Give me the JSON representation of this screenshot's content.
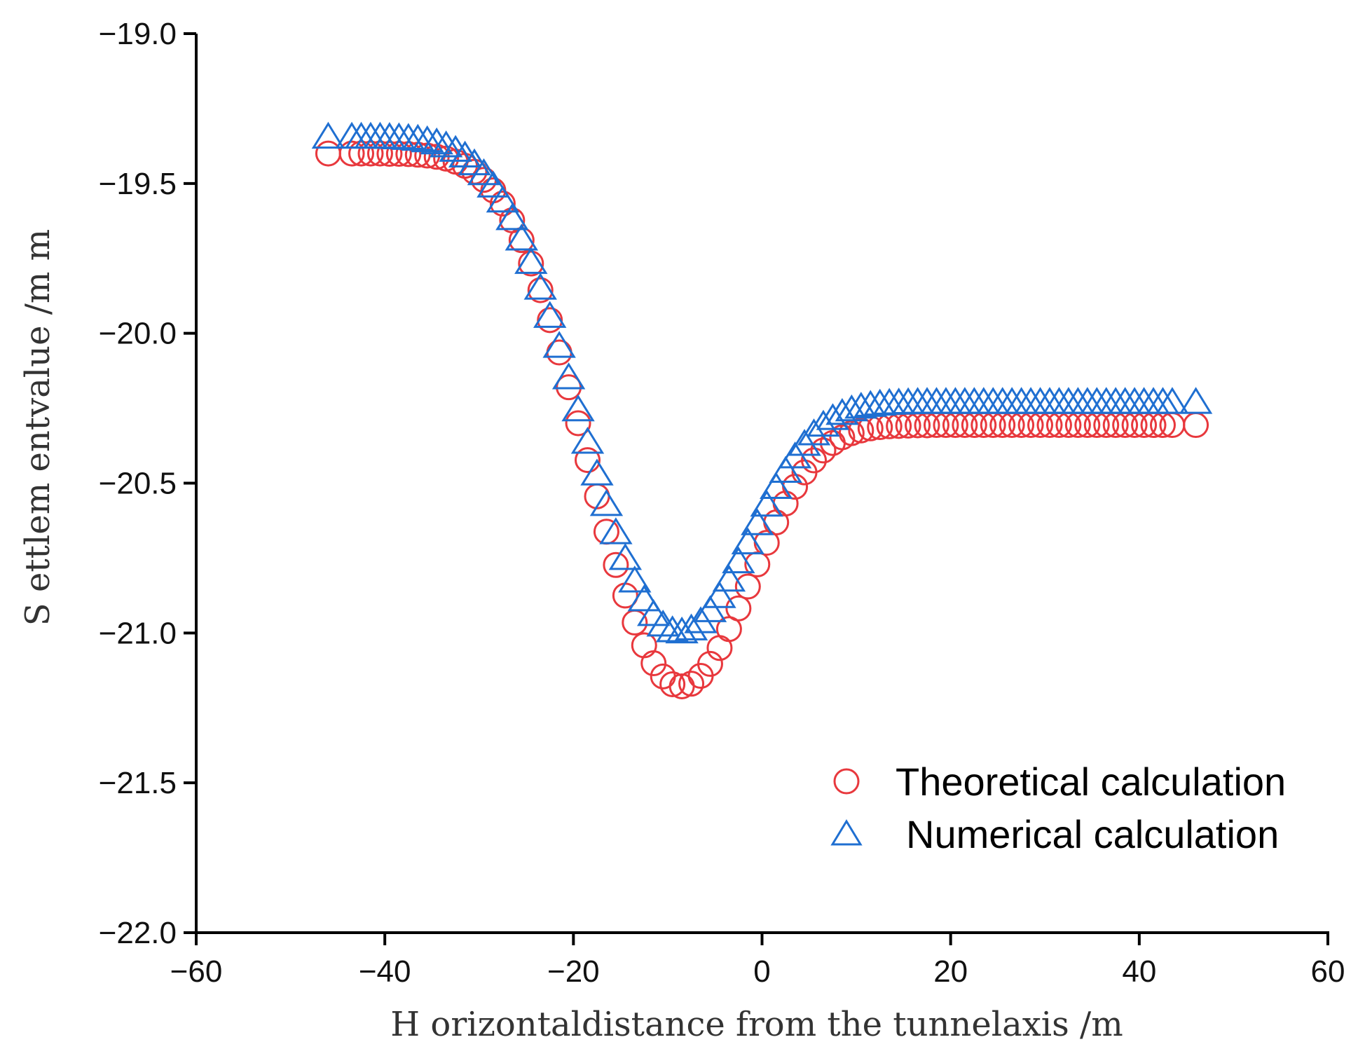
{
  "chart_data": {
    "type": "scatter",
    "xlabel": "H orizontaldistance from  the tunnelaxis /m",
    "ylabel": "S ettlem entvalue /m m",
    "xlim": [
      -60,
      60
    ],
    "ylim": [
      -22.0,
      -19.0
    ],
    "xticks": [
      -60,
      -40,
      -20,
      0,
      20,
      40,
      60
    ],
    "xtick_labels": [
      "−60",
      "−40",
      "−20",
      "0",
      "20",
      "40",
      "60"
    ],
    "yticks": [
      -19.0,
      -19.5,
      -20.0,
      -20.5,
      -21.0,
      -21.5,
      -22.0
    ],
    "ytick_labels": [
      "−19.0",
      "−19.5",
      "−20.0",
      "−20.5",
      "−21.0",
      "−21.5",
      "−22.0"
    ],
    "legend_position": "lower-right",
    "series": [
      {
        "name": "Theoretical calculation",
        "marker": "circle",
        "color": "#e8383d",
        "x": [
          -46,
          -43.5,
          -42.5,
          -41.5,
          -40.5,
          -39.5,
          -38.5,
          -37.5,
          -36.5,
          -35.5,
          -34.5,
          -33.5,
          -32.5,
          -31.5,
          -30.5,
          -29.5,
          -28.5,
          -27.5,
          -26.5,
          -25.5,
          -24.5,
          -23.5,
          -22.5,
          -21.5,
          -20.5,
          -19.5,
          -18.5,
          -17.5,
          -16.5,
          -15.5,
          -14.5,
          -13.5,
          -12.5,
          -11.5,
          -10.5,
          -9.5,
          -8.5,
          -7.5,
          -6.5,
          -5.5,
          -4.5,
          -3.5,
          -2.5,
          -1.5,
          -0.5,
          0.5,
          1.5,
          2.5,
          3.5,
          4.5,
          5.5,
          6.5,
          7.5,
          8.5,
          9.5,
          10.5,
          11.5,
          12.5,
          13.5,
          14.5,
          15.5,
          16.5,
          17.5,
          18.5,
          19.5,
          20.5,
          21.5,
          22.5,
          23.5,
          24.5,
          25.5,
          26.5,
          27.5,
          28.5,
          29.5,
          30.5,
          31.5,
          32.5,
          33.5,
          34.5,
          35.5,
          36.5,
          37.5,
          38.5,
          39.5,
          40.5,
          41.5,
          42.5,
          43.5,
          46
        ],
        "y": [
          -19.4,
          -19.4,
          -19.4,
          -19.4,
          -19.4,
          -19.401,
          -19.401,
          -19.402,
          -19.404,
          -19.407,
          -19.411,
          -19.417,
          -19.427,
          -19.441,
          -19.461,
          -19.488,
          -19.523,
          -19.567,
          -19.623,
          -19.689,
          -19.767,
          -19.856,
          -19.956,
          -20.064,
          -20.18,
          -20.3,
          -20.423,
          -20.544,
          -20.662,
          -20.773,
          -20.875,
          -20.965,
          -21.041,
          -21.101,
          -21.145,
          -21.171,
          -21.178,
          -21.169,
          -21.143,
          -21.103,
          -21.05,
          -20.987,
          -20.918,
          -20.845,
          -20.771,
          -20.699,
          -20.631,
          -20.568,
          -20.512,
          -20.464,
          -20.424,
          -20.391,
          -20.366,
          -20.347,
          -20.333,
          -20.324,
          -20.317,
          -20.313,
          -20.31,
          -20.309,
          -20.308,
          -20.307,
          -20.307,
          -20.306,
          -20.306,
          -20.306,
          -20.306,
          -20.306,
          -20.306,
          -20.306,
          -20.306,
          -20.306,
          -20.306,
          -20.306,
          -20.306,
          -20.306,
          -20.306,
          -20.306,
          -20.306,
          -20.306,
          -20.306,
          -20.306,
          -20.306,
          -20.306,
          -20.306,
          -20.306,
          -20.306,
          -20.306,
          -20.306,
          -20.306
        ]
      },
      {
        "name": "Numerical calculation",
        "marker": "triangle",
        "color": "#1f6fd1",
        "x": [
          -46,
          -43.5,
          -42.5,
          -41.5,
          -40.5,
          -39.5,
          -38.5,
          -37.5,
          -36.5,
          -35.5,
          -34.5,
          -33.5,
          -32.5,
          -31.5,
          -30.5,
          -29.5,
          -28.5,
          -27.5,
          -26.5,
          -25.5,
          -24.5,
          -23.5,
          -22.5,
          -21.5,
          -20.5,
          -19.5,
          -18.5,
          -17.5,
          -16.5,
          -15.5,
          -14.5,
          -13.5,
          -12.5,
          -11.5,
          -10.5,
          -9.5,
          -8.5,
          -7.5,
          -6.5,
          -5.5,
          -4.5,
          -3.5,
          -2.5,
          -1.5,
          -0.5,
          0.5,
          1.5,
          2.5,
          3.5,
          4.5,
          5.5,
          6.5,
          7.5,
          8.5,
          9.5,
          10.5,
          11.5,
          12.5,
          13.5,
          14.5,
          15.5,
          16.5,
          17.5,
          18.5,
          19.5,
          20.5,
          21.5,
          22.5,
          23.5,
          24.5,
          25.5,
          26.5,
          27.5,
          28.5,
          29.5,
          30.5,
          31.5,
          32.5,
          33.5,
          34.5,
          35.5,
          36.5,
          37.5,
          38.5,
          39.5,
          40.5,
          41.5,
          42.5,
          43.5,
          46
        ],
        "y": [
          -19.35,
          -19.35,
          -19.35,
          -19.35,
          -19.35,
          -19.351,
          -19.352,
          -19.354,
          -19.357,
          -19.362,
          -19.369,
          -19.379,
          -19.394,
          -19.413,
          -19.439,
          -19.472,
          -19.513,
          -19.563,
          -19.622,
          -19.69,
          -19.768,
          -19.854,
          -19.948,
          -20.048,
          -20.153,
          -20.26,
          -20.368,
          -20.474,
          -20.576,
          -20.67,
          -20.756,
          -20.831,
          -20.894,
          -20.943,
          -20.978,
          -20.997,
          -21.001,
          -20.991,
          -20.967,
          -20.93,
          -20.883,
          -20.828,
          -20.767,
          -20.704,
          -20.64,
          -20.578,
          -20.519,
          -20.465,
          -20.417,
          -20.375,
          -20.34,
          -20.311,
          -20.289,
          -20.272,
          -20.26,
          -20.251,
          -20.245,
          -20.241,
          -20.238,
          -20.237,
          -20.236,
          -20.235,
          -20.235,
          -20.235,
          -20.235,
          -20.235,
          -20.235,
          -20.235,
          -20.235,
          -20.235,
          -20.235,
          -20.235,
          -20.235,
          -20.235,
          -20.235,
          -20.235,
          -20.235,
          -20.235,
          -20.235,
          -20.235,
          -20.235,
          -20.235,
          -20.235,
          -20.235,
          -20.235,
          -20.235,
          -20.235,
          -20.235,
          -20.235,
          -20.235
        ]
      }
    ]
  }
}
